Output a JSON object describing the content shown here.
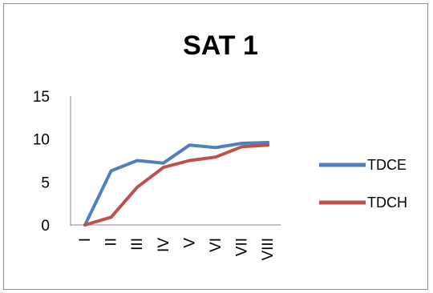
{
  "chart_data": {
    "type": "line",
    "title": "SAT 1",
    "xlabel": "",
    "ylabel": "",
    "categories": [
      "I",
      "II",
      "III",
      "IV",
      "V",
      "VI",
      "VII",
      "VIII"
    ],
    "ylim": [
      0,
      15
    ],
    "yticks": [
      "0",
      "5",
      "10",
      "15"
    ],
    "grid": false,
    "legend": "right",
    "series": [
      {
        "name": "TDCE",
        "color": "#4f81bd",
        "values": [
          0,
          6.3,
          7.5,
          7.2,
          9.3,
          9.0,
          9.5,
          9.6
        ]
      },
      {
        "name": "TDCH",
        "color": "#c0504d",
        "values": [
          0,
          0.9,
          4.4,
          6.7,
          7.5,
          7.9,
          9.1,
          9.3
        ]
      }
    ]
  }
}
